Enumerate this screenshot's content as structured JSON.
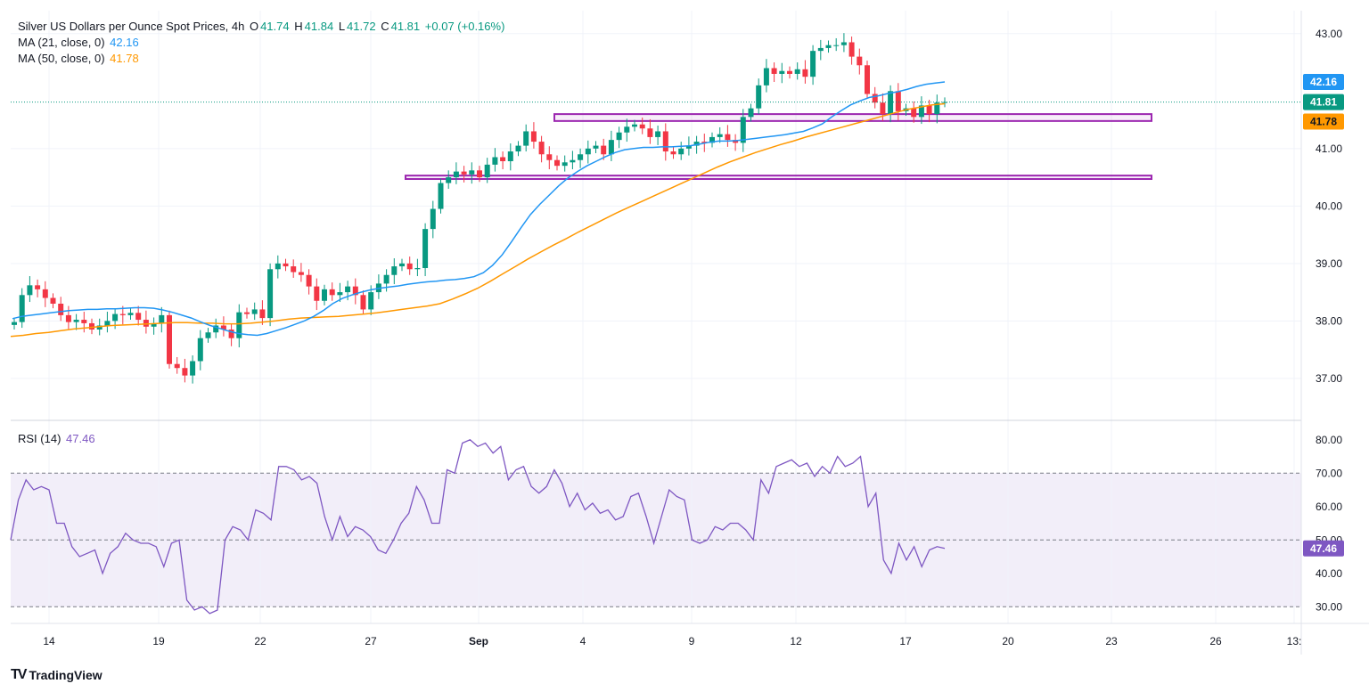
{
  "header": {
    "title": "Silver US Dollars per Ounce Spot Prices, 4h",
    "open_label": "O",
    "open": "41.74",
    "high_label": "H",
    "high": "41.84",
    "low_label": "L",
    "low": "41.72",
    "close_label": "C",
    "close": "41.81",
    "change": "+0.07 (+0.16%)"
  },
  "indicators": {
    "ma21_label": "MA (21, close, 0)",
    "ma21_value": "42.16",
    "ma50_label": "MA (50, close, 0)",
    "ma50_value": "41.78",
    "rsi_label": "RSI (14)",
    "rsi_value": "47.46"
  },
  "footer": {
    "brand": "TradingView",
    "logo": "TV"
  },
  "colors": {
    "up": "#089981",
    "down": "#f23645",
    "ma21": "#2196f3",
    "ma50": "#ff9800",
    "rsi": "#7e57c2",
    "box": "#9c27b0"
  },
  "chart_data": [
    {
      "type": "candlestick",
      "title": "Silver US Dollars per Ounce Spot Prices, 4h",
      "ylim": [
        36.3,
        43.4
      ],
      "y_ticks": [
        "37.00",
        "38.00",
        "39.00",
        "40.00",
        "41.00",
        "43.00"
      ],
      "x_ticks": [
        "14",
        "19",
        "22",
        "27",
        "Sep",
        "4",
        "9",
        "12",
        "17",
        "20",
        "23",
        "26",
        "13:"
      ],
      "closes": [
        37.98,
        38.45,
        38.62,
        38.55,
        38.4,
        38.3,
        38.1,
        37.98,
        38.02,
        37.96,
        37.85,
        37.92,
        38.0,
        38.12,
        38.1,
        38.14,
        38.02,
        37.9,
        37.96,
        38.1,
        37.25,
        37.18,
        37.05,
        37.3,
        37.7,
        37.8,
        37.92,
        37.85,
        37.7,
        38.15,
        38.12,
        38.2,
        38.05,
        38.9,
        39.0,
        38.95,
        38.85,
        38.8,
        38.6,
        38.35,
        38.55,
        38.45,
        38.5,
        38.6,
        38.45,
        38.2,
        38.5,
        38.65,
        38.8,
        38.95,
        39.0,
        38.9,
        38.92,
        39.6,
        39.95,
        40.4,
        40.5,
        40.6,
        40.55,
        40.62,
        40.5,
        40.72,
        40.85,
        40.78,
        40.95,
        41.05,
        41.3,
        41.12,
        40.9,
        40.8,
        40.7,
        40.76,
        40.8,
        40.9,
        41.0,
        41.05,
        40.9,
        41.15,
        41.28,
        41.38,
        41.42,
        41.35,
        41.2,
        41.3,
        40.95,
        40.9,
        41.0,
        41.05,
        41.12,
        41.1,
        41.2,
        41.25,
        41.15,
        41.1,
        41.55,
        41.7,
        42.1,
        42.4,
        42.3,
        42.35,
        42.3,
        42.38,
        42.25,
        42.7,
        42.75,
        42.8,
        42.8,
        42.85,
        42.6,
        42.45,
        41.95,
        41.8,
        41.6,
        42.0,
        41.65,
        41.7,
        41.55,
        41.75,
        41.6,
        41.8,
        41.81
      ],
      "ma21": [
        38.04,
        38.08,
        38.1,
        38.12,
        38.14,
        38.16,
        38.18,
        38.19,
        38.2,
        38.2,
        38.21,
        38.21,
        38.22,
        38.23,
        38.23,
        38.22,
        38.19,
        38.15,
        38.1,
        38.05,
        37.98,
        37.92,
        37.87,
        37.82,
        37.78,
        37.76,
        37.75,
        37.78,
        37.83,
        37.88,
        37.94,
        38.0,
        38.08,
        38.18,
        38.3,
        38.39,
        38.45,
        38.5,
        38.54,
        38.57,
        38.59,
        38.61,
        38.64,
        38.66,
        38.68,
        38.69,
        38.71,
        38.72,
        38.74,
        38.77,
        38.84,
        38.97,
        39.15,
        39.38,
        39.62,
        39.85,
        40.03,
        40.19,
        40.35,
        40.49,
        40.6,
        40.7,
        40.78,
        40.86,
        40.93,
        40.98,
        41.0,
        41.02,
        41.02,
        41.03,
        41.03,
        41.04,
        41.05,
        41.08,
        41.11,
        41.13,
        41.13,
        41.14,
        41.16,
        41.18,
        41.2,
        41.22,
        41.24,
        41.27,
        41.3,
        41.36,
        41.43,
        41.55,
        41.66,
        41.76,
        41.83,
        41.89,
        41.92,
        41.96,
        41.99,
        42.03,
        42.08,
        42.12,
        42.14,
        42.16
      ],
      "ma50": [
        37.73,
        37.75,
        37.78,
        37.8,
        37.83,
        37.86,
        37.88,
        37.9,
        37.92,
        37.93,
        37.94,
        37.95,
        37.96,
        37.97,
        37.97,
        37.96,
        37.96,
        37.95,
        37.95,
        37.96,
        37.98,
        38.0,
        38.03,
        38.05,
        38.06,
        38.07,
        38.08,
        38.1,
        38.12,
        38.14,
        38.17,
        38.2,
        38.23,
        38.26,
        38.3,
        38.38,
        38.47,
        38.57,
        38.69,
        38.82,
        38.95,
        39.08,
        39.2,
        39.32,
        39.43,
        39.55,
        39.66,
        39.77,
        39.88,
        39.98,
        40.08,
        40.18,
        40.28,
        40.38,
        40.48,
        40.58,
        40.68,
        40.77,
        40.85,
        40.93,
        41.0,
        41.07,
        41.13,
        41.2,
        41.26,
        41.32,
        41.38,
        41.44,
        41.5,
        41.56,
        41.62,
        41.68,
        41.72,
        41.76,
        41.78
      ],
      "boxes": [
        {
          "low": 41.48,
          "high": 41.6
        },
        {
          "low": 40.47,
          "high": 40.53
        }
      ],
      "last_close": 41.81
    },
    {
      "type": "line",
      "title": "RSI (14)",
      "ylim": [
        25,
        85
      ],
      "y_ticks": [
        "30.00",
        "40.00",
        "50.00",
        "60.00",
        "70.00",
        "80.00"
      ],
      "bands": {
        "upper": 70,
        "middle": 50,
        "lower": 30
      },
      "values": [
        50,
        62,
        68,
        65,
        66,
        65,
        55,
        55,
        48,
        45,
        46,
        47,
        40,
        46,
        48,
        52,
        50,
        49,
        49,
        48,
        42,
        49,
        50,
        32,
        29,
        30,
        28,
        29,
        50,
        54,
        53,
        50,
        59,
        58,
        56,
        72,
        72,
        71,
        68,
        69,
        67,
        57,
        50,
        57,
        51,
        54,
        53,
        51,
        47,
        46,
        50,
        55,
        58,
        66,
        62,
        55,
        55,
        71,
        70,
        79,
        80,
        78,
        79,
        76,
        78,
        68,
        71,
        72,
        66,
        64,
        66,
        71,
        67,
        60,
        64,
        59,
        61,
        58,
        59,
        56,
        57,
        63,
        64,
        57,
        49,
        57,
        65,
        63,
        62,
        50,
        49,
        50,
        54,
        53,
        55,
        55,
        53,
        50,
        68,
        64,
        72,
        73,
        74,
        72,
        73,
        69,
        72,
        70,
        75,
        72,
        73,
        75,
        60,
        64,
        44,
        40,
        49,
        44,
        48,
        42,
        47,
        48,
        47.46
      ]
    }
  ]
}
